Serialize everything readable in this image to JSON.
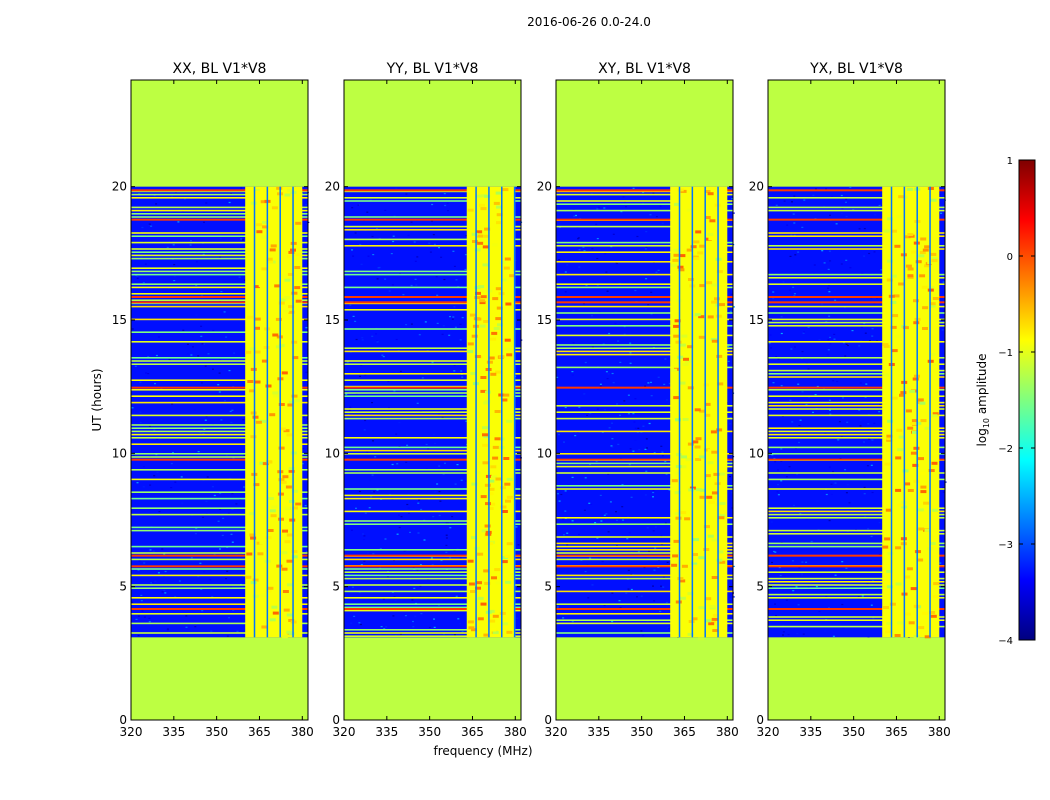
{
  "figure": {
    "suptitle": "2016-06-26 0.0-24.0",
    "shared_xlabel": "frequency (MHz)",
    "shared_ylabel": "UT (hours)"
  },
  "chart_data": {
    "type": "heatmap",
    "panel_titles": [
      "XX, BL V1*V8",
      "YY, BL V1*V8",
      "XY, BL V1*V8",
      "YX, BL V1*V8"
    ],
    "xlim": [
      320,
      382
    ],
    "ylim": [
      0,
      24
    ],
    "xticks": [
      320,
      335,
      350,
      365,
      380
    ],
    "yticks": [
      0,
      5,
      10,
      15,
      20
    ],
    "fill_value_log10": -1.2,
    "data_time_range_hours": [
      3.1,
      20.0
    ],
    "rfi_band_mhz": [
      [
        360,
        380
      ],
      [
        363,
        380
      ],
      [
        360,
        380
      ],
      [
        360,
        380
      ]
    ],
    "background_log10": -3.3,
    "high_amplitude_times_hours": [
      4.2,
      5.8,
      6.2,
      9.8,
      12.5,
      15.7,
      15.9,
      18.8,
      19.9
    ],
    "colorbar": {
      "label_main": "log",
      "label_sub": "10",
      "label_tail": " amplitude",
      "range": [
        -4,
        1
      ],
      "ticks": [
        1,
        0,
        -1,
        -2,
        -3,
        -4
      ],
      "colormap": "jet"
    }
  }
}
